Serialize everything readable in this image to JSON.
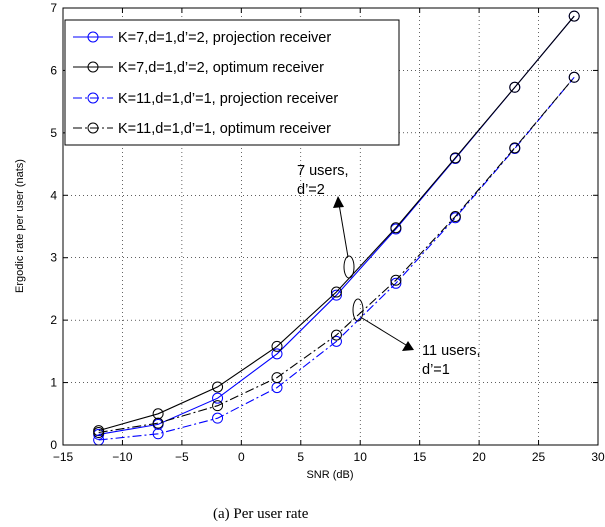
{
  "chart_data": {
    "type": "line",
    "title": "",
    "xlabel": "SNR (dB)",
    "ylabel": "Ergodic rate per user (nats)",
    "xlim": [
      -15,
      30
    ],
    "ylim": [
      0,
      7
    ],
    "xticks": [
      -15,
      -10,
      -5,
      0,
      5,
      10,
      15,
      20,
      25,
      30
    ],
    "yticks": [
      0,
      1,
      2,
      3,
      4,
      5,
      6,
      7
    ],
    "grid": true,
    "legend_position": "top-left",
    "x": [
      -12,
      -7,
      -2,
      3,
      8,
      13,
      18,
      23,
      28
    ],
    "series": [
      {
        "name": "K=7,d=1,d’=2, projection receiver",
        "color": "#0000ff",
        "line": "solid",
        "marker": "circle",
        "values": [
          0.17,
          0.33,
          0.75,
          1.46,
          2.4,
          3.46,
          4.59,
          5.73,
          6.87
        ]
      },
      {
        "name": "K=7,d=1,d’=2, optimum receiver",
        "color": "#000000",
        "line": "solid",
        "marker": "circle",
        "values": [
          0.23,
          0.5,
          0.93,
          1.58,
          2.45,
          3.48,
          4.6,
          5.73,
          6.87
        ]
      },
      {
        "name": "K=11,d=1,d’=1, projection receiver",
        "color": "#0000ff",
        "line": "dashdot",
        "marker": "circle",
        "values": [
          0.08,
          0.18,
          0.43,
          0.92,
          1.66,
          2.59,
          3.64,
          4.75,
          5.89
        ]
      },
      {
        "name": "K=11,d=1,d’=1, optimum receiver",
        "color": "#000000",
        "line": "dashdot",
        "marker": "circle",
        "values": [
          0.2,
          0.35,
          0.63,
          1.08,
          1.76,
          2.64,
          3.66,
          4.76,
          5.89
        ]
      }
    ],
    "annotations": [
      {
        "lines": [
          "7 users,",
          "d’=2"
        ]
      },
      {
        "lines": [
          "11 users,",
          "d’=1"
        ]
      }
    ],
    "caption": "(a)  Per user rate"
  }
}
